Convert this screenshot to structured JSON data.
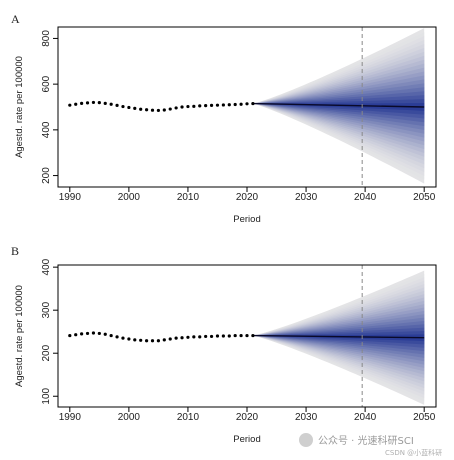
{
  "chart_data": [
    {
      "panel": "A",
      "type": "line",
      "xlabel": "Period",
      "ylabel": "Agestd. rate per 100000",
      "xlim": [
        1988,
        2052
      ],
      "ylim": [
        150,
        850
      ],
      "xticks": [
        1990,
        2000,
        2010,
        2020,
        2030,
        2040,
        2050
      ],
      "yticks": [
        200,
        400,
        600,
        800
      ],
      "vline": 2039.5,
      "observed": {
        "x": [
          1990,
          1991,
          1992,
          1993,
          1994,
          1995,
          1996,
          1997,
          1998,
          1999,
          2000,
          2001,
          2002,
          2003,
          2004,
          2005,
          2006,
          2007,
          2008,
          2009,
          2010,
          2011,
          2012,
          2013,
          2014,
          2015,
          2016,
          2017,
          2018,
          2019,
          2020,
          2021
        ],
        "y": [
          508,
          512,
          516,
          518,
          520,
          519,
          516,
          512,
          507,
          502,
          498,
          494,
          490,
          488,
          486,
          485,
          487,
          491,
          496,
          500,
          502,
          503,
          505,
          506,
          507,
          508,
          509,
          510,
          511,
          512,
          514,
          515
        ]
      },
      "forecast": {
        "x_start": 2021,
        "x_end": 2050,
        "mean_end": 500,
        "upper_end": 845,
        "lower_end": 165,
        "bands": 20
      },
      "grid": false
    },
    {
      "panel": "B",
      "type": "line",
      "xlabel": "Period",
      "ylabel": "Agestd. rate per 100000",
      "xlim": [
        1988,
        2052
      ],
      "ylim": [
        75,
        405
      ],
      "xticks": [
        1990,
        2000,
        2010,
        2020,
        2030,
        2040,
        2050
      ],
      "yticks": [
        100,
        200,
        300,
        400
      ],
      "vline": 2039.5,
      "observed": {
        "x": [
          1990,
          1991,
          1992,
          1993,
          1994,
          1995,
          1996,
          1997,
          1998,
          1999,
          2000,
          2001,
          2002,
          2003,
          2004,
          2005,
          2006,
          2007,
          2008,
          2009,
          2010,
          2011,
          2012,
          2013,
          2014,
          2015,
          2016,
          2017,
          2018,
          2019,
          2020,
          2021
        ],
        "y": [
          241,
          243,
          245,
          246,
          247,
          246,
          244,
          241,
          238,
          235,
          233,
          231,
          230,
          229,
          229,
          229,
          231,
          233,
          235,
          236,
          237,
          238,
          238,
          239,
          239,
          240,
          240,
          240,
          241,
          241,
          241,
          241
        ]
      },
      "forecast": {
        "x_start": 2021,
        "x_end": 2050,
        "mean_end": 236,
        "upper_end": 392,
        "lower_end": 80,
        "bands": 20
      },
      "grid": false
    }
  ],
  "watermark": {
    "main": "公众号 · 光速科研SCI",
    "small": "CSDN @小蓝科研"
  },
  "colors": {
    "band_outer": "#e4e4e6",
    "band_inner": "#1b2f8f",
    "mean_line": "#0a0a2a",
    "observed_point": "#000000",
    "vline": "#888888"
  }
}
